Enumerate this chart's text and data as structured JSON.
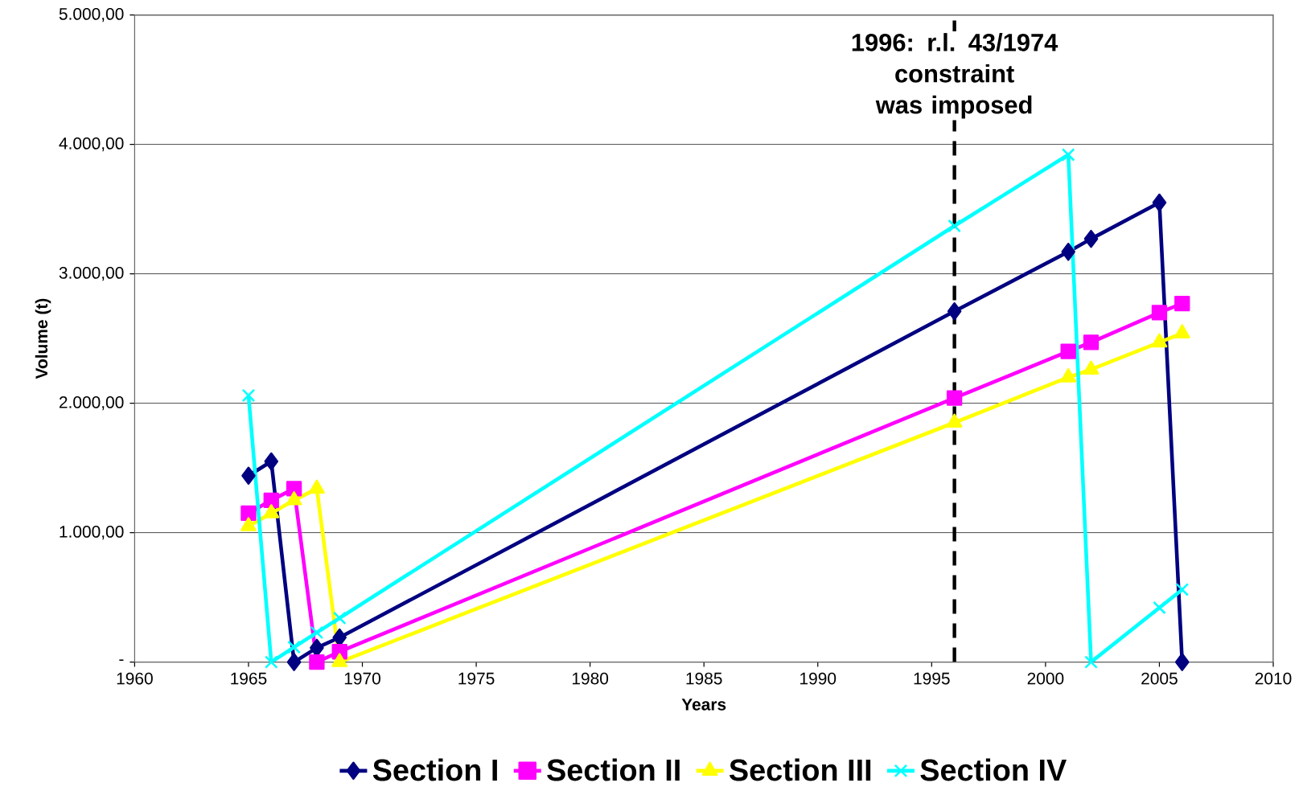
{
  "chart_data": {
    "type": "line",
    "xlabel": "Years",
    "ylabel": "Volume (t)",
    "x": [
      1965,
      1966,
      1967,
      1968,
      1969,
      1996,
      2001,
      2002,
      2005,
      2006
    ],
    "series": [
      {
        "name": "Section I",
        "color": "#000080",
        "marker": "diamond",
        "values": [
          1440,
          1550,
          0,
          110,
          190,
          2710,
          3170,
          3270,
          3550,
          0
        ]
      },
      {
        "name": "Section II",
        "color": "#ff00ff",
        "marker": "square",
        "values": [
          1150,
          1250,
          1340,
          0,
          80,
          2040,
          2400,
          2470,
          2700,
          2770
        ]
      },
      {
        "name": "Section III",
        "color": "#ffff00",
        "marker": "triangle",
        "values": [
          1050,
          1150,
          1250,
          1340,
          0,
          1850,
          2200,
          2260,
          2470,
          2540
        ]
      },
      {
        "name": "Section IV",
        "color": "#00ffff",
        "marker": "cross",
        "values": [
          2060,
          0,
          115,
          228,
          340,
          3370,
          3920,
          0,
          420,
          560
        ]
      }
    ],
    "xlim": [
      1960,
      2010
    ],
    "xticks": [
      1960,
      1965,
      1970,
      1975,
      1980,
      1985,
      1990,
      1995,
      2000,
      2005,
      2010
    ],
    "ylim": [
      0,
      5000
    ],
    "yticks": [
      {
        "value": 0,
        "label": "-"
      },
      {
        "value": 1000,
        "label": "1.000,00"
      },
      {
        "value": 2000,
        "label": "2.000,00"
      },
      {
        "value": 3000,
        "label": "3.000,00"
      },
      {
        "value": 4000,
        "label": "4.000,00"
      },
      {
        "value": 5000,
        "label": "5.000,00"
      }
    ],
    "ref_lines": [
      {
        "axis": "x",
        "value": 1996,
        "label": "1996:  r.l. 43/1974 constraint was imposed",
        "color": "#000000",
        "line_style": "dashed"
      }
    ],
    "grid": "y",
    "legend": "bottom",
    "line_style": "solid"
  }
}
